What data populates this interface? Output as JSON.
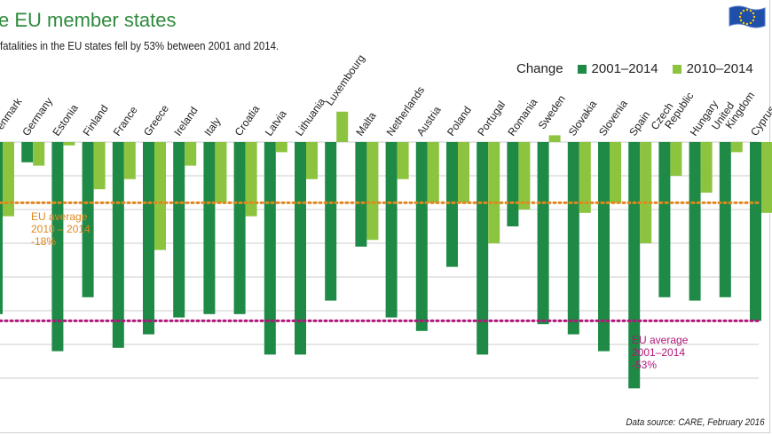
{
  "title": "e EU member states",
  "subtitle": "fatalities in the EU states fell by 53% between 2001 and 2014.",
  "source": "Data source: CARE, February 2016",
  "legend": {
    "label": "Change",
    "series_a": "2001–2014",
    "series_b": "2010–2014"
  },
  "colors": {
    "dark": "#1e8a45",
    "light": "#8cc43f",
    "avg18": "#e0871f",
    "avg53": "#b0177a",
    "grid": "#cccccc"
  },
  "avg_2010": {
    "line1": "EU average",
    "line2": "2010 – 2014",
    "line3": "-18%"
  },
  "avg_2001": {
    "line1": "EU average",
    "line2": "2001–2014",
    "line3": "-53%"
  },
  "chart_data": {
    "type": "bar",
    "title": "e EU member states",
    "ylabel": "Change",
    "ylim": [
      -70,
      10
    ],
    "grid": true,
    "categories": [
      "Denmark",
      "Germany",
      "Estonia",
      "Finland",
      "France",
      "Greece",
      "Ireland",
      "Italy",
      "Croatia",
      "Latvia",
      "Lithuania",
      "Luxembourg",
      "Malta",
      "Netherlands",
      "Austria",
      "Poland",
      "Portugal",
      "Romania",
      "Sweden",
      "Slovakia",
      "Slovenia",
      "Spain",
      "Czech Republic",
      "Hungary",
      "United Kingdom",
      "Cyprus"
    ],
    "label_lines": [
      [
        "Denmark"
      ],
      [
        "Germany"
      ],
      [
        "Estonia"
      ],
      [
        "Finland"
      ],
      [
        "France"
      ],
      [
        "Greece"
      ],
      [
        "Ireland"
      ],
      [
        "Italy"
      ],
      [
        "Croatia"
      ],
      [
        "Latvia"
      ],
      [
        "Lithuania"
      ],
      [
        "Luxembourg"
      ],
      [
        "Malta"
      ],
      [
        "Netherlands"
      ],
      [
        "Austria"
      ],
      [
        "Poland"
      ],
      [
        "Portugal"
      ],
      [
        "Romania"
      ],
      [
        "Sweden"
      ],
      [
        "Slovakia"
      ],
      [
        "Slovenia"
      ],
      [
        "Spain"
      ],
      [
        "Czech",
        "Republic"
      ],
      [
        "Hungary"
      ],
      [
        "United",
        "Kingdom"
      ],
      [
        "Cyprus"
      ]
    ],
    "series": [
      {
        "name": "2001–2014",
        "values": [
          -51,
          -6,
          -62,
          -46,
          -61,
          -57,
          -52,
          -51,
          -51,
          -63,
          -63,
          -47,
          -31,
          -52,
          -56,
          -37,
          -63,
          -25,
          -54,
          -57,
          -62,
          -73,
          -46,
          -47,
          -46,
          -53
        ]
      },
      {
        "name": "2010–2014",
        "values": [
          -22,
          -7,
          -1,
          -14,
          -11,
          -32,
          -7,
          -18,
          -22,
          -3,
          -11,
          9,
          -29,
          -11,
          -18,
          -18,
          -30,
          -20,
          2,
          -21,
          -18,
          -30,
          -10,
          -15,
          -3,
          -21
        ]
      }
    ],
    "reference_lines": [
      {
        "name": "EU average 2010 – 2014",
        "value": -18
      },
      {
        "name": "EU average 2001–2014",
        "value": -53
      }
    ]
  }
}
